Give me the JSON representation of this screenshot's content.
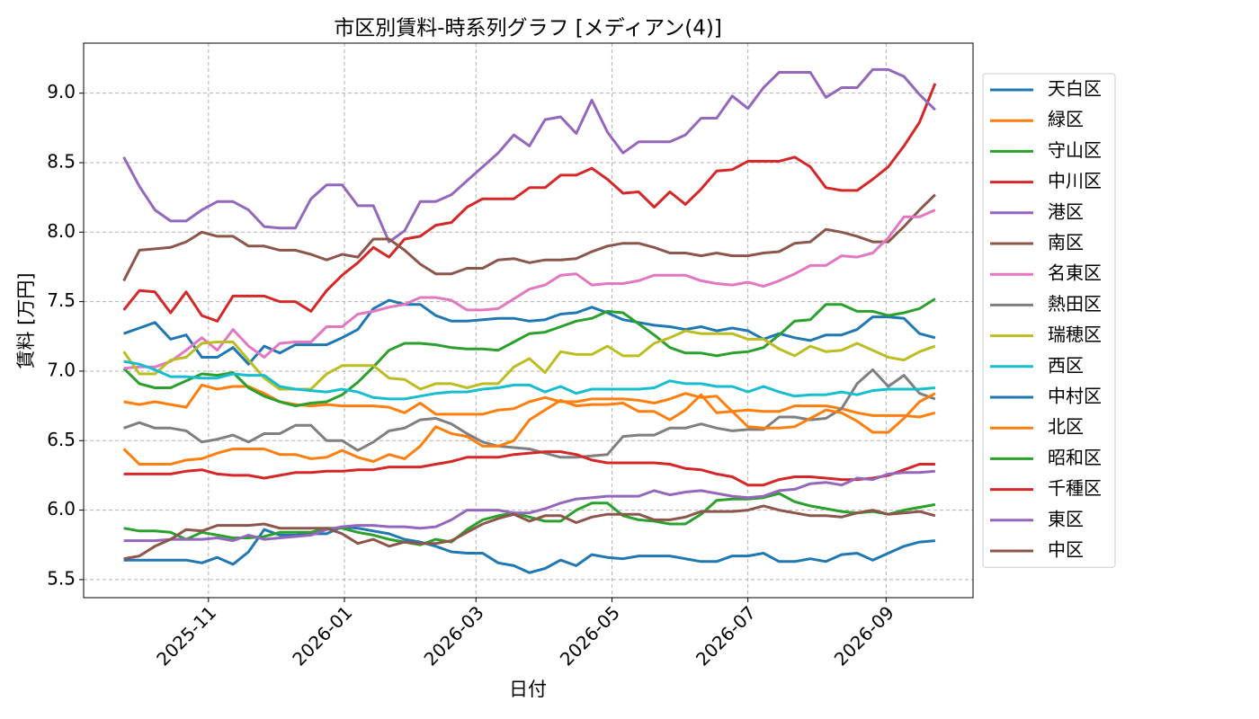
{
  "chart_data": {
    "type": "line",
    "title": "市区別賃料-時系列グラフ [メディアン(4)]",
    "x_label": "日付",
    "y_label": "賃料 [万円]",
    "x": [
      "2025-09-24",
      "2025-10-01",
      "2025-10-08",
      "2025-10-15",
      "2025-10-22",
      "2025-10-29",
      "2025-11-05",
      "2025-11-12",
      "2025-11-19",
      "2025-11-26",
      "2025-12-03",
      "2025-12-10",
      "2025-12-17",
      "2025-12-24",
      "2025-12-31",
      "2026-01-07",
      "2026-01-14",
      "2026-01-21",
      "2026-01-28",
      "2026-02-04",
      "2026-02-11",
      "2026-02-18",
      "2026-02-25",
      "2026-03-04",
      "2026-03-11",
      "2026-03-18",
      "2026-03-25",
      "2026-04-01",
      "2026-04-08",
      "2026-04-15",
      "2026-04-22",
      "2026-04-29",
      "2026-05-06",
      "2026-05-13",
      "2026-05-20",
      "2026-05-27",
      "2026-06-03",
      "2026-06-10",
      "2026-06-17",
      "2026-06-24",
      "2026-07-01",
      "2026-07-08",
      "2026-07-15",
      "2026-07-22",
      "2026-07-29",
      "2026-08-05",
      "2026-08-12",
      "2026-08-19",
      "2026-08-26",
      "2026-09-02",
      "2026-09-09",
      "2026-09-16",
      "2026-09-23"
    ],
    "xlim": [
      "2025-09-06",
      "2026-10-10"
    ],
    "xticks": [
      {
        "value": "2025-11-01",
        "label": "2025-11"
      },
      {
        "value": "2026-01-01",
        "label": "2026-01"
      },
      {
        "value": "2026-03-01",
        "label": "2026-03"
      },
      {
        "value": "2026-05-01",
        "label": "2026-05"
      },
      {
        "value": "2026-07-01",
        "label": "2026-07"
      },
      {
        "value": "2026-09-01",
        "label": "2026-09"
      }
    ],
    "ylim": [
      5.37,
      9.36
    ],
    "yticks": [
      5.5,
      {
        "value": 6,
        "label": "6.0"
      },
      6.5,
      {
        "value": 7,
        "label": "7.0"
      },
      7.5,
      {
        "value": 8,
        "label": "8.0"
      },
      8.5,
      {
        "value": 9,
        "label": "9.0"
      }
    ],
    "grid": true,
    "legend": "outside right",
    "series": [
      {
        "name": "天白区",
        "color": "#1f77b4",
        "values": [
          7.27,
          7.31,
          7.35,
          7.23,
          7.26,
          7.1,
          7.1,
          7.17,
          7.05,
          7.18,
          7.13,
          7.19,
          7.19,
          7.19,
          7.24,
          7.3,
          7.45,
          7.51,
          7.48,
          7.48,
          7.4,
          7.36,
          7.36,
          7.37,
          7.38,
          7.38,
          7.36,
          7.37,
          7.41,
          7.42,
          7.46,
          7.42,
          7.37,
          7.35,
          7.33,
          7.32,
          7.3,
          7.32,
          7.29,
          7.31,
          7.29,
          7.23,
          7.27,
          7.24,
          7.22,
          7.26,
          7.26,
          7.3,
          7.39,
          7.39,
          7.38,
          7.27,
          7.24
        ]
      },
      {
        "name": "緑区",
        "color": "#ff7f0e",
        "values": [
          6.78,
          6.76,
          6.78,
          6.76,
          6.74,
          6.9,
          6.87,
          6.89,
          6.89,
          6.84,
          6.78,
          6.76,
          6.75,
          6.76,
          6.75,
          6.75,
          6.75,
          6.74,
          6.7,
          6.77,
          6.69,
          6.69,
          6.69,
          6.69,
          6.72,
          6.73,
          6.78,
          6.81,
          6.78,
          6.78,
          6.8,
          6.8,
          6.8,
          6.79,
          6.77,
          6.8,
          6.84,
          6.81,
          6.82,
          6.71,
          6.72,
          6.71,
          6.71,
          6.75,
          6.75,
          6.75,
          6.73,
          6.7,
          6.68,
          6.68,
          6.68,
          6.67,
          6.7
        ]
      },
      {
        "name": "守山区",
        "color": "#2ca02c",
        "values": [
          7.02,
          6.91,
          6.88,
          6.88,
          6.93,
          6.98,
          6.97,
          6.99,
          6.88,
          6.82,
          6.78,
          6.75,
          6.77,
          6.78,
          6.83,
          6.92,
          7.03,
          7.15,
          7.2,
          7.2,
          7.19,
          7.17,
          7.16,
          7.16,
          7.15,
          7.21,
          7.27,
          7.28,
          7.32,
          7.36,
          7.38,
          7.43,
          7.42,
          7.34,
          7.26,
          7.17,
          7.13,
          7.13,
          7.11,
          7.13,
          7.14,
          7.17,
          7.26,
          7.36,
          7.37,
          7.48,
          7.48,
          7.43,
          7.43,
          7.4,
          7.42,
          7.45,
          7.52
        ]
      },
      {
        "name": "中川区",
        "color": "#d62728",
        "values": [
          7.44,
          7.58,
          7.57,
          7.42,
          7.57,
          7.4,
          7.36,
          7.54,
          7.54,
          7.54,
          7.5,
          7.5,
          7.43,
          7.58,
          7.69,
          7.78,
          7.89,
          7.82,
          7.95,
          7.97,
          8.05,
          8.07,
          8.18,
          8.24,
          8.24,
          8.24,
          8.32,
          8.32,
          8.41,
          8.41,
          8.46,
          8.38,
          8.28,
          8.29,
          8.18,
          8.29,
          8.2,
          8.31,
          8.44,
          8.45,
          8.51,
          8.51,
          8.51,
          8.54,
          8.47,
          8.32,
          8.3,
          8.3,
          8.38,
          8.47,
          8.62,
          8.79,
          9.07
        ]
      },
      {
        "name": "港区",
        "color": "#9467bd",
        "values": [
          8.54,
          8.33,
          8.16,
          8.08,
          8.08,
          8.16,
          8.22,
          8.22,
          8.16,
          8.04,
          8.03,
          8.03,
          8.24,
          8.34,
          8.34,
          8.19,
          8.19,
          7.93,
          8.01,
          8.22,
          8.22,
          8.27,
          8.37,
          8.47,
          8.57,
          8.7,
          8.62,
          8.81,
          8.83,
          8.71,
          8.95,
          8.72,
          8.57,
          8.65,
          8.65,
          8.65,
          8.7,
          8.82,
          8.82,
          8.98,
          8.89,
          9.04,
          9.15,
          9.15,
          9.15,
          8.97,
          9.04,
          9.04,
          9.17,
          9.17,
          9.12,
          8.99,
          8.88
        ]
      },
      {
        "name": "南区",
        "color": "#8c564b",
        "values": [
          7.65,
          7.87,
          7.88,
          7.89,
          7.93,
          8.0,
          7.97,
          7.97,
          7.9,
          7.9,
          7.87,
          7.87,
          7.84,
          7.8,
          7.84,
          7.82,
          7.95,
          7.95,
          7.87,
          7.77,
          7.7,
          7.7,
          7.74,
          7.74,
          7.8,
          7.81,
          7.78,
          7.8,
          7.8,
          7.81,
          7.86,
          7.9,
          7.92,
          7.92,
          7.89,
          7.85,
          7.85,
          7.83,
          7.85,
          7.83,
          7.83,
          7.85,
          7.86,
          7.92,
          7.93,
          8.02,
          8.0,
          7.97,
          7.93,
          7.93,
          8.04,
          8.16,
          8.27
        ]
      },
      {
        "name": "名東区",
        "color": "#e377c2",
        "values": [
          7.02,
          7.03,
          7.03,
          7.07,
          7.15,
          7.24,
          7.15,
          7.3,
          7.18,
          7.1,
          7.2,
          7.21,
          7.21,
          7.32,
          7.32,
          7.41,
          7.43,
          7.46,
          7.48,
          7.53,
          7.53,
          7.51,
          7.44,
          7.44,
          7.45,
          7.52,
          7.59,
          7.62,
          7.69,
          7.7,
          7.62,
          7.63,
          7.63,
          7.65,
          7.69,
          7.69,
          7.69,
          7.65,
          7.63,
          7.62,
          7.64,
          7.61,
          7.65,
          7.7,
          7.76,
          7.76,
          7.83,
          7.82,
          7.85,
          7.96,
          8.11,
          8.11,
          8.16
        ]
      },
      {
        "name": "熱田区",
        "color": "#7f7f7f",
        "values": [
          6.59,
          6.63,
          6.59,
          6.59,
          6.57,
          6.49,
          6.51,
          6.54,
          6.49,
          6.55,
          6.55,
          6.61,
          6.61,
          6.5,
          6.5,
          6.43,
          6.49,
          6.57,
          6.59,
          6.65,
          6.66,
          6.62,
          6.55,
          6.49,
          6.46,
          6.45,
          6.44,
          6.41,
          6.38,
          6.38,
          6.39,
          6.4,
          6.53,
          6.54,
          6.54,
          6.59,
          6.59,
          6.62,
          6.59,
          6.57,
          6.58,
          6.58,
          6.67,
          6.67,
          6.65,
          6.66,
          6.73,
          6.91,
          7.01,
          6.89,
          6.97,
          6.84,
          6.8
        ]
      },
      {
        "name": "瑞穂区",
        "color": "#bcbd22",
        "values": [
          7.14,
          6.98,
          6.98,
          7.08,
          7.1,
          7.2,
          7.21,
          7.21,
          7.08,
          6.95,
          6.87,
          6.87,
          6.87,
          6.98,
          7.04,
          7.04,
          7.04,
          6.95,
          6.94,
          6.87,
          6.91,
          6.91,
          6.88,
          6.91,
          6.91,
          7.03,
          7.09,
          6.99,
          7.14,
          7.12,
          7.12,
          7.18,
          7.11,
          7.11,
          7.2,
          7.24,
          7.29,
          7.27,
          7.27,
          7.27,
          7.23,
          7.23,
          7.16,
          7.11,
          7.18,
          7.14,
          7.15,
          7.2,
          7.15,
          7.1,
          7.08,
          7.14,
          7.18
        ]
      },
      {
        "name": "西区",
        "color": "#17becf",
        "values": [
          7.07,
          7.05,
          7.01,
          6.96,
          6.96,
          6.95,
          6.95,
          6.98,
          6.97,
          6.97,
          6.89,
          6.87,
          6.86,
          6.85,
          6.87,
          6.85,
          6.81,
          6.8,
          6.8,
          6.82,
          6.84,
          6.85,
          6.85,
          6.87,
          6.88,
          6.9,
          6.9,
          6.85,
          6.89,
          6.84,
          6.87,
          6.87,
          6.87,
          6.87,
          6.88,
          6.93,
          6.91,
          6.91,
          6.89,
          6.89,
          6.85,
          6.89,
          6.85,
          6.82,
          6.83,
          6.83,
          6.85,
          6.83,
          6.86,
          6.87,
          6.87,
          6.87,
          6.88
        ]
      },
      {
        "name": "中村区",
        "color": "#1f77b4",
        "values": [
          5.64,
          5.64,
          5.64,
          5.64,
          5.64,
          5.62,
          5.66,
          5.61,
          5.7,
          5.86,
          5.82,
          5.82,
          5.83,
          5.83,
          5.88,
          5.87,
          5.85,
          5.83,
          5.79,
          5.77,
          5.74,
          5.7,
          5.69,
          5.69,
          5.62,
          5.6,
          5.55,
          5.58,
          5.64,
          5.6,
          5.68,
          5.66,
          5.65,
          5.67,
          5.67,
          5.67,
          5.65,
          5.63,
          5.63,
          5.67,
          5.67,
          5.69,
          5.63,
          5.63,
          5.65,
          5.63,
          5.68,
          5.69,
          5.64,
          5.69,
          5.74,
          5.77,
          5.78
        ]
      },
      {
        "name": "北区",
        "color": "#ff7f0e",
        "values": [
          6.44,
          6.33,
          6.33,
          6.33,
          6.36,
          6.37,
          6.41,
          6.44,
          6.44,
          6.44,
          6.4,
          6.4,
          6.37,
          6.38,
          6.43,
          6.38,
          6.35,
          6.4,
          6.37,
          6.46,
          6.6,
          6.55,
          6.53,
          6.46,
          6.46,
          6.5,
          6.65,
          6.72,
          6.79,
          6.75,
          6.76,
          6.76,
          6.77,
          6.71,
          6.71,
          6.65,
          6.72,
          6.83,
          6.7,
          6.71,
          6.6,
          6.59,
          6.59,
          6.6,
          6.66,
          6.72,
          6.7,
          6.64,
          6.56,
          6.56,
          6.66,
          6.78,
          6.84
        ]
      },
      {
        "name": "昭和区",
        "color": "#2ca02c",
        "values": [
          5.87,
          5.85,
          5.85,
          5.84,
          5.79,
          5.84,
          5.82,
          5.8,
          5.8,
          5.81,
          5.84,
          5.84,
          5.84,
          5.87,
          5.87,
          5.84,
          5.82,
          5.79,
          5.77,
          5.75,
          5.79,
          5.77,
          5.86,
          5.93,
          5.96,
          5.98,
          5.95,
          5.92,
          5.92,
          6.0,
          6.05,
          6.05,
          5.96,
          5.93,
          5.92,
          5.9,
          5.9,
          5.97,
          6.07,
          6.08,
          6.08,
          6.09,
          6.12,
          6.06,
          6.03,
          6.01,
          5.99,
          5.98,
          5.99,
          5.97,
          6.0,
          6.02,
          6.04
        ]
      },
      {
        "name": "千種区",
        "color": "#d62728",
        "values": [
          6.26,
          6.26,
          6.26,
          6.26,
          6.28,
          6.29,
          6.26,
          6.25,
          6.25,
          6.23,
          6.25,
          6.27,
          6.27,
          6.28,
          6.28,
          6.29,
          6.29,
          6.31,
          6.31,
          6.31,
          6.33,
          6.35,
          6.38,
          6.38,
          6.38,
          6.4,
          6.41,
          6.42,
          6.42,
          6.4,
          6.36,
          6.34,
          6.34,
          6.34,
          6.34,
          6.33,
          6.3,
          6.29,
          6.26,
          6.24,
          6.18,
          6.18,
          6.22,
          6.24,
          6.24,
          6.23,
          6.22,
          6.22,
          6.23,
          6.25,
          6.29,
          6.33,
          6.33
        ]
      },
      {
        "name": "東区",
        "color": "#9467bd",
        "values": [
          5.78,
          5.78,
          5.78,
          5.79,
          5.79,
          5.79,
          5.8,
          5.78,
          5.82,
          5.79,
          5.8,
          5.81,
          5.82,
          5.86,
          5.88,
          5.89,
          5.89,
          5.88,
          5.88,
          5.87,
          5.88,
          5.93,
          6.0,
          6.0,
          6.0,
          5.98,
          5.98,
          6.01,
          6.05,
          6.08,
          6.09,
          6.1,
          6.1,
          6.1,
          6.14,
          6.11,
          6.13,
          6.14,
          6.12,
          6.1,
          6.09,
          6.1,
          6.14,
          6.15,
          6.19,
          6.2,
          6.18,
          6.23,
          6.22,
          6.26,
          6.27,
          6.27,
          6.28
        ]
      },
      {
        "name": "中区",
        "color": "#8c564b",
        "values": [
          5.65,
          5.67,
          5.74,
          5.79,
          5.86,
          5.85,
          5.89,
          5.89,
          5.89,
          5.9,
          5.87,
          5.87,
          5.87,
          5.87,
          5.83,
          5.76,
          5.79,
          5.74,
          5.77,
          5.76,
          5.76,
          5.78,
          5.84,
          5.9,
          5.94,
          5.97,
          5.92,
          5.96,
          5.96,
          5.91,
          5.95,
          5.97,
          5.97,
          5.97,
          5.93,
          5.93,
          5.95,
          5.99,
          5.99,
          5.99,
          6.0,
          6.03,
          6.0,
          5.98,
          5.96,
          5.96,
          5.95,
          5.98,
          6.0,
          5.97,
          5.98,
          5.99,
          5.96
        ]
      }
    ]
  }
}
